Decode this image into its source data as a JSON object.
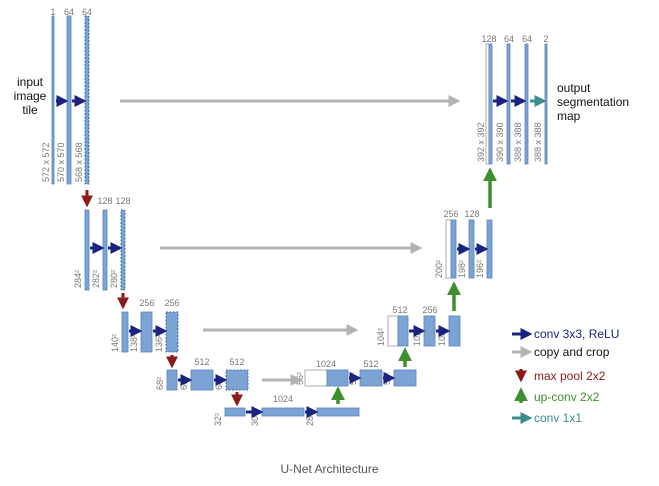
{
  "colors": {
    "block": "#7ba3d4",
    "block_stroke": "#5a83b8",
    "copy": "#ffffff",
    "conv_arrow": "#1a237e",
    "copy_arrow": "#b3b3b3",
    "pool_arrow": "#8b1a1a",
    "upconv_arrow": "#3f8f2f",
    "conv1x1_arrow": "#3d8c8c",
    "label_text": "#777777",
    "caption_text": "#555555"
  },
  "diagram": {
    "input_label": [
      "input",
      "image",
      "tile"
    ],
    "output_label": [
      "output",
      "segmentation",
      "map"
    ],
    "channels": {
      "l1": [
        "1",
        "64",
        "64"
      ],
      "l2": [
        "128",
        "128"
      ],
      "l3": [
        "256",
        "256"
      ],
      "l4": [
        "512",
        "512"
      ],
      "bottom": [
        "1024"
      ],
      "u4": [
        "1024",
        "512"
      ],
      "u3": [
        "512",
        "256"
      ],
      "u2": [
        "256",
        "128"
      ],
      "u1": [
        "128",
        "64",
        "64",
        "2"
      ]
    },
    "sizes": {
      "l1": [
        "572 x 572",
        "570 x 570",
        "568 x 568"
      ],
      "l2": [
        "284²",
        "282²",
        "280²"
      ],
      "l3": [
        "140²",
        "138²",
        "136²"
      ],
      "l4": [
        "68²",
        "66²",
        "64²"
      ],
      "bottom": [
        "32²",
        "30²",
        "28²"
      ],
      "u4": [
        "56²",
        "54²",
        "52²"
      ],
      "u3": [
        "104²",
        "102²",
        "100²"
      ],
      "u2": [
        "200²",
        "198²",
        "196²"
      ],
      "u1": [
        "392 x 392",
        "390 x 390",
        "388 x 388",
        "388 x 388"
      ]
    }
  },
  "legend": [
    {
      "label": "conv 3x3, ReLU",
      "icon": "arrow-right-icon",
      "color": "#1a237e"
    },
    {
      "label": "copy and crop",
      "icon": "arrow-right-icon",
      "color": "#b3b3b3"
    },
    {
      "label": "max pool 2x2",
      "icon": "arrow-down-icon",
      "color": "#8b1a1a"
    },
    {
      "label": "up-conv 2x2",
      "icon": "arrow-up-icon",
      "color": "#3f8f2f"
    },
    {
      "label": "conv 1x1",
      "icon": "arrow-right-icon",
      "color": "#3d8c8c"
    }
  ],
  "caption": "U-Net Architecture"
}
